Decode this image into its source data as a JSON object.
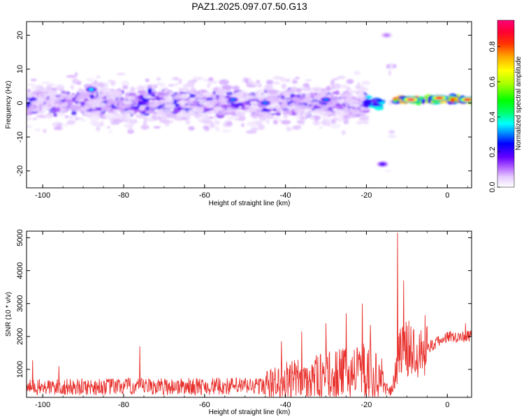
{
  "title": "PAZ1.2025.097.07.50.G13",
  "chart_data": [
    {
      "type": "heatmap",
      "xlabel": "Height of straight line (km)",
      "ylabel": "Frequency (Hz)",
      "xlim": [
        -104,
        6
      ],
      "ylim": [
        -25,
        24
      ],
      "xticks": [
        -100,
        -80,
        -60,
        -40,
        -20,
        0
      ],
      "xtick_labels": [
        "-100",
        "-80",
        "-60",
        "-40",
        "-20",
        "0"
      ],
      "yticks": [
        -20,
        -10,
        0,
        10,
        20
      ],
      "ytick_labels": [
        "-20",
        "-10",
        "0",
        "10",
        "20"
      ],
      "colorbar": {
        "label": "Normalized spectral amplitude",
        "range": [
          0,
          0.95
        ],
        "ticks": [
          0.0,
          0.2,
          0.4,
          0.6,
          0.8
        ],
        "tick_labels": [
          "0.0",
          "0.2",
          "0.4",
          "0.6",
          "0.8"
        ],
        "colormap": "rainbow"
      },
      "bands": [
        {
          "x_start": -104,
          "x_end": -20,
          "freq_center": 0,
          "freq_halfwidth": 4,
          "amplitude": 0.15
        },
        {
          "x_start": -104,
          "x_end": -20,
          "freq_center": 0,
          "freq_halfwidth": 9,
          "amplitude": 0.05
        },
        {
          "x_start": -20,
          "x_end": -16,
          "freq_center": 0,
          "freq_halfwidth": 2,
          "amplitude": 0.25
        },
        {
          "x_start": -15,
          "x_end": -13.5,
          "freq_center": 0,
          "freq_halfwidth": 24,
          "amplitude": 0.05
        },
        {
          "x_start": -13,
          "x_end": 6,
          "freq_center": 1,
          "freq_halfwidth": 1,
          "amplitude": 0.5
        }
      ],
      "peaks": [
        {
          "x": -88,
          "freq": 4,
          "amplitude": 0.35
        },
        {
          "x": -53,
          "freq": 1,
          "amplitude": 0.3
        },
        {
          "x": -45,
          "freq": 0,
          "amplitude": 0.3
        },
        {
          "x": -30,
          "freq": 1,
          "amplitude": 0.3
        },
        {
          "x": -9,
          "freq": 1,
          "amplitude": 0.95
        },
        {
          "x": -2,
          "freq": 1.5,
          "amplitude": 0.9
        },
        {
          "x": 5,
          "freq": 1,
          "amplitude": 0.9
        },
        {
          "x": -16,
          "freq": -18,
          "amplitude": 0.2
        },
        {
          "x": -15,
          "freq": 20,
          "amplitude": 0.1
        }
      ]
    },
    {
      "type": "line",
      "xlabel": "Height of straight line (km)",
      "ylabel": "SNR (10 * v/v)",
      "xlim": [
        -104,
        6
      ],
      "ylim": [
        150,
        5200
      ],
      "xticks": [
        -100,
        -80,
        -60,
        -40,
        -20,
        0
      ],
      "xtick_labels": [
        "-100",
        "-80",
        "-60",
        "-40",
        "-20",
        "0"
      ],
      "yticks": [
        1000,
        2000,
        3000,
        4000,
        5000
      ],
      "ytick_labels": [
        "1000",
        "2000",
        "3000",
        "4000",
        "5000"
      ],
      "color": "#e8302c",
      "trend": [
        {
          "x": -104,
          "y": 450
        },
        {
          "x": -80,
          "y": 480
        },
        {
          "x": -60,
          "y": 480
        },
        {
          "x": -45,
          "y": 500
        },
        {
          "x": -40,
          "y": 650
        },
        {
          "x": -30,
          "y": 800
        },
        {
          "x": -20,
          "y": 950
        },
        {
          "x": -16,
          "y": 700
        },
        {
          "x": -14.5,
          "y": 250
        },
        {
          "x": -13,
          "y": 700
        },
        {
          "x": -12,
          "y": 1500
        },
        {
          "x": -10,
          "y": 1600
        },
        {
          "x": -5,
          "y": 1650
        },
        {
          "x": 0,
          "y": 2000
        },
        {
          "x": 6,
          "y": 2000
        }
      ],
      "spikes": [
        {
          "x": -102.5,
          "y": 1280
        },
        {
          "x": -96,
          "y": 1100
        },
        {
          "x": -76,
          "y": 1700
        },
        {
          "x": -41,
          "y": 1850
        },
        {
          "x": -36,
          "y": 2150
        },
        {
          "x": -30,
          "y": 2400
        },
        {
          "x": -25,
          "y": 2700
        },
        {
          "x": -21,
          "y": 3000
        },
        {
          "x": -19,
          "y": 2350
        },
        {
          "x": -12.3,
          "y": 5150
        },
        {
          "x": -10.8,
          "y": 3700
        },
        {
          "x": -5.5,
          "y": 2650
        },
        {
          "x": 4.5,
          "y": 2400
        }
      ]
    }
  ]
}
